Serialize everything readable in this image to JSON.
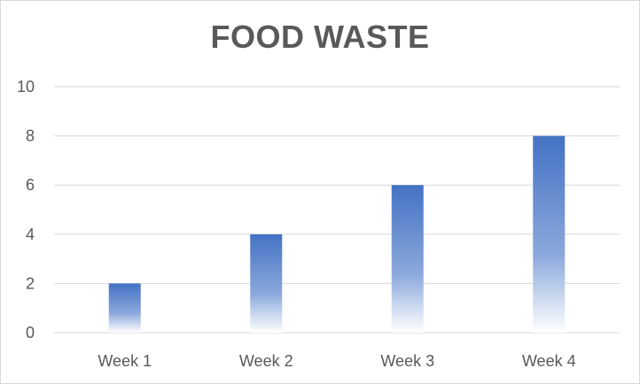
{
  "chart_data": {
    "type": "bar",
    "title": "FOOD WASTE",
    "xlabel": "",
    "ylabel": "",
    "categories": [
      "Week 1",
      "Week 2",
      "Week 3",
      "Week 4"
    ],
    "values": [
      2,
      4,
      6,
      8
    ],
    "ylim": [
      0,
      10
    ],
    "yticks": [
      0,
      2,
      4,
      6,
      8,
      10
    ],
    "grid": true,
    "legend": "none",
    "bar_color_top": "#4472c4",
    "bar_color_bottom": "#ffffff",
    "gridline_color": "#d9d9d9",
    "text_color": "#595959"
  }
}
